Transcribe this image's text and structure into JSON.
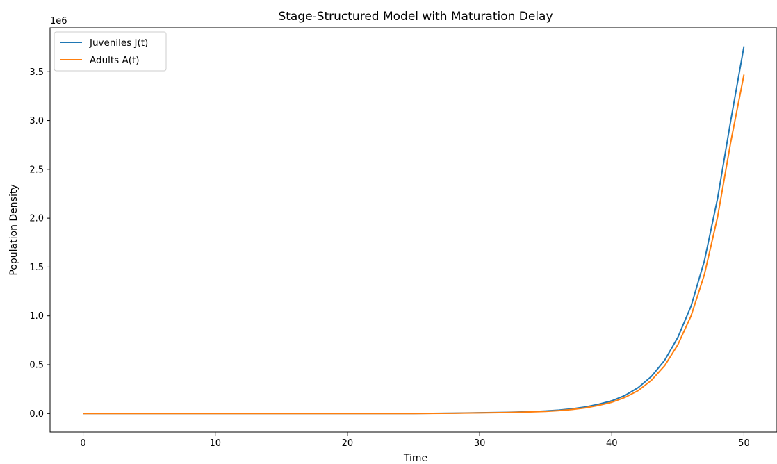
{
  "chart_data": {
    "type": "line",
    "title": "Stage-Structured Model with Maturation Delay",
    "xlabel": "Time",
    "ylabel": "Population Density",
    "y_offset_label": "1e6",
    "y_scale_factor": 1000000,
    "xlim": [
      -2.5,
      52.5
    ],
    "ylim": [
      -190000,
      3950000
    ],
    "xticks": [
      0,
      10,
      20,
      30,
      40,
      50
    ],
    "xtick_labels": [
      "0",
      "10",
      "20",
      "30",
      "40",
      "50"
    ],
    "yticks": [
      0,
      500000,
      1000000,
      1500000,
      2000000,
      2500000,
      3000000,
      3500000
    ],
    "ytick_labels": [
      "0.0",
      "0.5",
      "1.0",
      "1.5",
      "2.0",
      "2.5",
      "3.0",
      "3.5"
    ],
    "grid": false,
    "legend_position": "upper-left",
    "x": [
      0,
      5,
      10,
      15,
      20,
      25,
      28,
      30,
      32,
      34,
      35,
      36,
      37,
      38,
      39,
      40,
      41,
      42,
      43,
      44,
      45,
      46,
      47,
      48,
      49,
      50
    ],
    "series": [
      {
        "name": "Juveniles J(t)",
        "color": "#1f77b4",
        "values": [
          0,
          0,
          0,
          0,
          0,
          0,
          4000,
          8000,
          12000,
          20000,
          26000,
          35000,
          48000,
          67000,
          95000,
          130000,
          185000,
          265000,
          380000,
          545000,
          780000,
          1100000,
          1560000,
          2200000,
          3000000,
          3760000
        ]
      },
      {
        "name": "Adults A(t)",
        "color": "#ff7f0e",
        "values": [
          0,
          0,
          0,
          0,
          0,
          0,
          3000,
          6500,
          10000,
          17000,
          22000,
          30000,
          41000,
          58000,
          83000,
          115000,
          165000,
          235000,
          340000,
          490000,
          705000,
          1000000,
          1420000,
          2010000,
          2780000,
          3470000
        ]
      }
    ]
  }
}
